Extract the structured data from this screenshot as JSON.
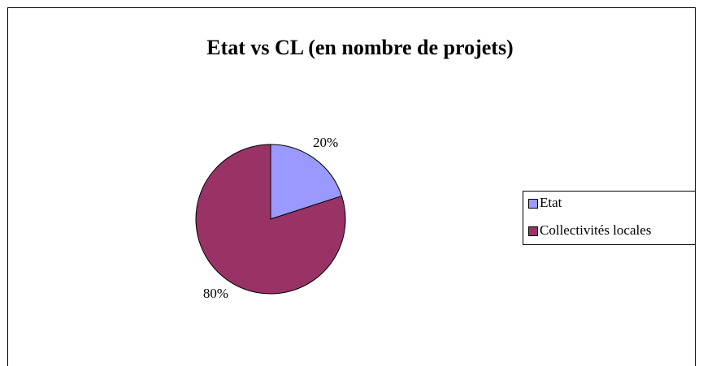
{
  "chart_data": {
    "type": "pie",
    "title": "Etat vs CL (en nombre de projets)",
    "categories": [
      "Etat",
      "Collectivités locales"
    ],
    "values": [
      20,
      80
    ],
    "value_labels": [
      "20%",
      "80%"
    ],
    "colors": [
      "#9999ff",
      "#993366"
    ],
    "legend": "right"
  }
}
